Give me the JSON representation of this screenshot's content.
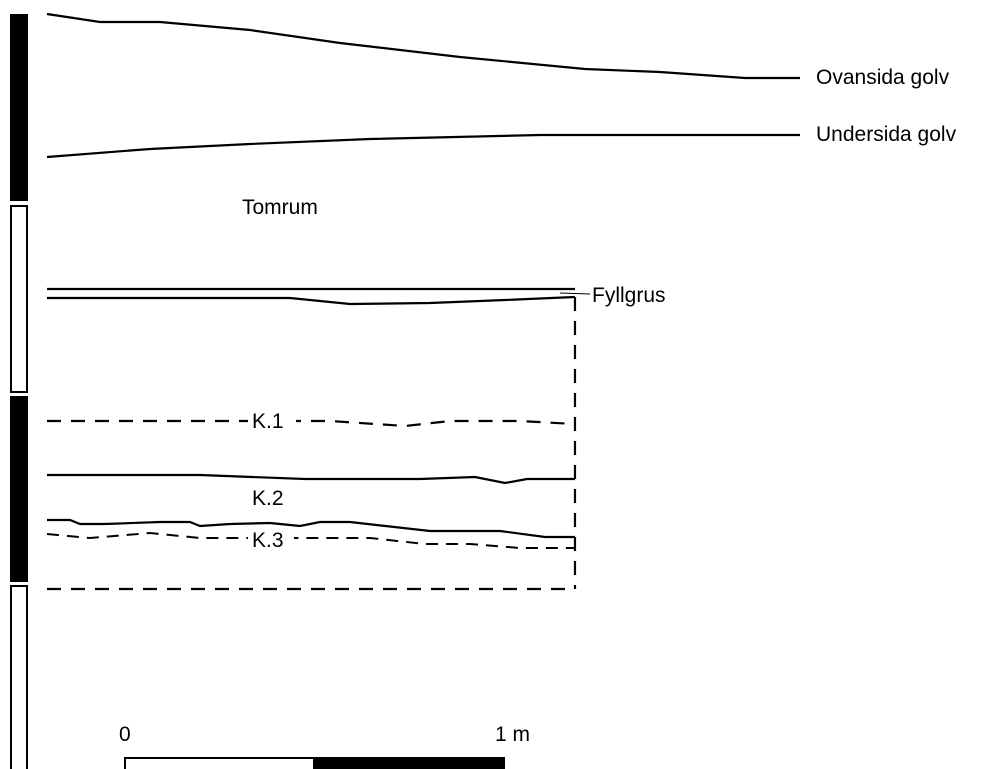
{
  "labels": {
    "ovansida_golv": "Ovansida golv",
    "undersida_golv": "Undersida golv",
    "tomrum": "Tomrum",
    "fyllgrus": "Fyllgrus",
    "k1": "K.1",
    "k2": "K.2",
    "k3": "K.3"
  },
  "scale_bar": {
    "start_label": "0",
    "end_label": "1 m"
  }
}
